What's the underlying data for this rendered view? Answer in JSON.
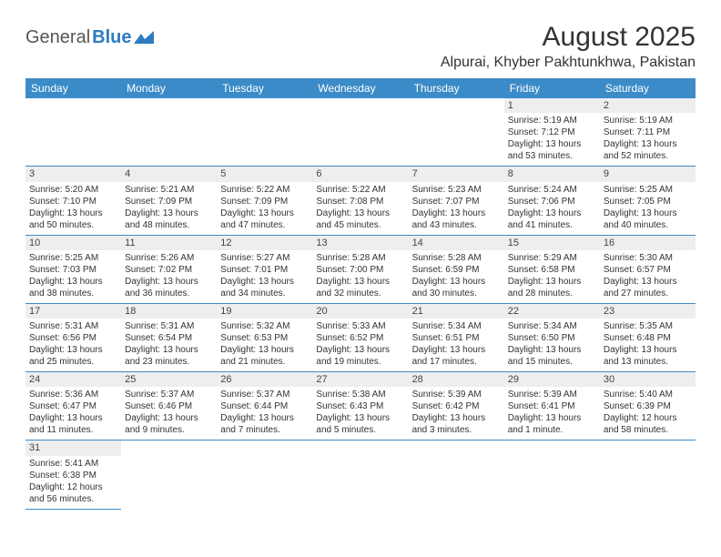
{
  "logo": {
    "text1": "General",
    "text2": "Blue"
  },
  "title": "August 2025",
  "location": "Alpurai, Khyber Pakhtunkhwa, Pakistan",
  "colors": {
    "header_bg": "#3b8bc8",
    "header_text": "#ffffff",
    "border": "#3b8bc8",
    "daynum_bg": "#eeeeee",
    "text": "#333333"
  },
  "day_headers": [
    "Sunday",
    "Monday",
    "Tuesday",
    "Wednesday",
    "Thursday",
    "Friday",
    "Saturday"
  ],
  "weeks": [
    [
      null,
      null,
      null,
      null,
      null,
      {
        "n": "1",
        "sr": "Sunrise: 5:19 AM",
        "ss": "Sunset: 7:12 PM",
        "d1": "Daylight: 13 hours",
        "d2": "and 53 minutes."
      },
      {
        "n": "2",
        "sr": "Sunrise: 5:19 AM",
        "ss": "Sunset: 7:11 PM",
        "d1": "Daylight: 13 hours",
        "d2": "and 52 minutes."
      }
    ],
    [
      {
        "n": "3",
        "sr": "Sunrise: 5:20 AM",
        "ss": "Sunset: 7:10 PM",
        "d1": "Daylight: 13 hours",
        "d2": "and 50 minutes."
      },
      {
        "n": "4",
        "sr": "Sunrise: 5:21 AM",
        "ss": "Sunset: 7:09 PM",
        "d1": "Daylight: 13 hours",
        "d2": "and 48 minutes."
      },
      {
        "n": "5",
        "sr": "Sunrise: 5:22 AM",
        "ss": "Sunset: 7:09 PM",
        "d1": "Daylight: 13 hours",
        "d2": "and 47 minutes."
      },
      {
        "n": "6",
        "sr": "Sunrise: 5:22 AM",
        "ss": "Sunset: 7:08 PM",
        "d1": "Daylight: 13 hours",
        "d2": "and 45 minutes."
      },
      {
        "n": "7",
        "sr": "Sunrise: 5:23 AM",
        "ss": "Sunset: 7:07 PM",
        "d1": "Daylight: 13 hours",
        "d2": "and 43 minutes."
      },
      {
        "n": "8",
        "sr": "Sunrise: 5:24 AM",
        "ss": "Sunset: 7:06 PM",
        "d1": "Daylight: 13 hours",
        "d2": "and 41 minutes."
      },
      {
        "n": "9",
        "sr": "Sunrise: 5:25 AM",
        "ss": "Sunset: 7:05 PM",
        "d1": "Daylight: 13 hours",
        "d2": "and 40 minutes."
      }
    ],
    [
      {
        "n": "10",
        "sr": "Sunrise: 5:25 AM",
        "ss": "Sunset: 7:03 PM",
        "d1": "Daylight: 13 hours",
        "d2": "and 38 minutes."
      },
      {
        "n": "11",
        "sr": "Sunrise: 5:26 AM",
        "ss": "Sunset: 7:02 PM",
        "d1": "Daylight: 13 hours",
        "d2": "and 36 minutes."
      },
      {
        "n": "12",
        "sr": "Sunrise: 5:27 AM",
        "ss": "Sunset: 7:01 PM",
        "d1": "Daylight: 13 hours",
        "d2": "and 34 minutes."
      },
      {
        "n": "13",
        "sr": "Sunrise: 5:28 AM",
        "ss": "Sunset: 7:00 PM",
        "d1": "Daylight: 13 hours",
        "d2": "and 32 minutes."
      },
      {
        "n": "14",
        "sr": "Sunrise: 5:28 AM",
        "ss": "Sunset: 6:59 PM",
        "d1": "Daylight: 13 hours",
        "d2": "and 30 minutes."
      },
      {
        "n": "15",
        "sr": "Sunrise: 5:29 AM",
        "ss": "Sunset: 6:58 PM",
        "d1": "Daylight: 13 hours",
        "d2": "and 28 minutes."
      },
      {
        "n": "16",
        "sr": "Sunrise: 5:30 AM",
        "ss": "Sunset: 6:57 PM",
        "d1": "Daylight: 13 hours",
        "d2": "and 27 minutes."
      }
    ],
    [
      {
        "n": "17",
        "sr": "Sunrise: 5:31 AM",
        "ss": "Sunset: 6:56 PM",
        "d1": "Daylight: 13 hours",
        "d2": "and 25 minutes."
      },
      {
        "n": "18",
        "sr": "Sunrise: 5:31 AM",
        "ss": "Sunset: 6:54 PM",
        "d1": "Daylight: 13 hours",
        "d2": "and 23 minutes."
      },
      {
        "n": "19",
        "sr": "Sunrise: 5:32 AM",
        "ss": "Sunset: 6:53 PM",
        "d1": "Daylight: 13 hours",
        "d2": "and 21 minutes."
      },
      {
        "n": "20",
        "sr": "Sunrise: 5:33 AM",
        "ss": "Sunset: 6:52 PM",
        "d1": "Daylight: 13 hours",
        "d2": "and 19 minutes."
      },
      {
        "n": "21",
        "sr": "Sunrise: 5:34 AM",
        "ss": "Sunset: 6:51 PM",
        "d1": "Daylight: 13 hours",
        "d2": "and 17 minutes."
      },
      {
        "n": "22",
        "sr": "Sunrise: 5:34 AM",
        "ss": "Sunset: 6:50 PM",
        "d1": "Daylight: 13 hours",
        "d2": "and 15 minutes."
      },
      {
        "n": "23",
        "sr": "Sunrise: 5:35 AM",
        "ss": "Sunset: 6:48 PM",
        "d1": "Daylight: 13 hours",
        "d2": "and 13 minutes."
      }
    ],
    [
      {
        "n": "24",
        "sr": "Sunrise: 5:36 AM",
        "ss": "Sunset: 6:47 PM",
        "d1": "Daylight: 13 hours",
        "d2": "and 11 minutes."
      },
      {
        "n": "25",
        "sr": "Sunrise: 5:37 AM",
        "ss": "Sunset: 6:46 PM",
        "d1": "Daylight: 13 hours",
        "d2": "and 9 minutes."
      },
      {
        "n": "26",
        "sr": "Sunrise: 5:37 AM",
        "ss": "Sunset: 6:44 PM",
        "d1": "Daylight: 13 hours",
        "d2": "and 7 minutes."
      },
      {
        "n": "27",
        "sr": "Sunrise: 5:38 AM",
        "ss": "Sunset: 6:43 PM",
        "d1": "Daylight: 13 hours",
        "d2": "and 5 minutes."
      },
      {
        "n": "28",
        "sr": "Sunrise: 5:39 AM",
        "ss": "Sunset: 6:42 PM",
        "d1": "Daylight: 13 hours",
        "d2": "and 3 minutes."
      },
      {
        "n": "29",
        "sr": "Sunrise: 5:39 AM",
        "ss": "Sunset: 6:41 PM",
        "d1": "Daylight: 13 hours",
        "d2": "and 1 minute."
      },
      {
        "n": "30",
        "sr": "Sunrise: 5:40 AM",
        "ss": "Sunset: 6:39 PM",
        "d1": "Daylight: 12 hours",
        "d2": "and 58 minutes."
      }
    ],
    [
      {
        "n": "31",
        "sr": "Sunrise: 5:41 AM",
        "ss": "Sunset: 6:38 PM",
        "d1": "Daylight: 12 hours",
        "d2": "and 56 minutes."
      },
      null,
      null,
      null,
      null,
      null,
      null
    ]
  ]
}
